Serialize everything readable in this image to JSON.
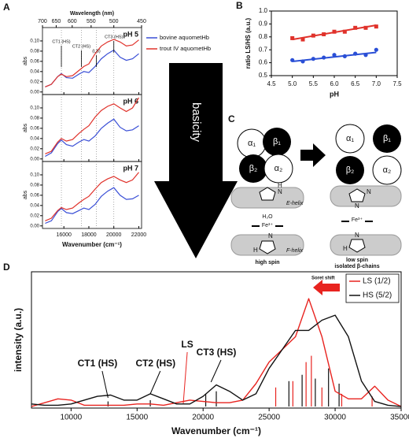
{
  "chart_data": [
    {
      "type": "line",
      "label": "A",
      "x2label": "Wavelength (nm)",
      "x2ticks": [
        700,
        650,
        600,
        550,
        500,
        450
      ],
      "xlabel": "Wavenumber (cm⁻¹)",
      "ylabel": "abs",
      "xlim": [
        14286,
        22222
      ],
      "xticks": [
        16000,
        18000,
        20000,
        22000
      ],
      "ylim": [
        -0.005,
        0.12
      ],
      "yticks": [
        {
          "value": 0,
          "label": "0.00"
        },
        {
          "value": 0.02,
          "label": "0.02"
        },
        {
          "value": 0.04,
          "label": "0.04"
        },
        {
          "value": 0.06,
          "label": "0.06"
        },
        {
          "value": 0.08,
          "label": "0.08"
        },
        {
          "value": 0.1,
          "label": "0.10"
        }
      ],
      "series": [
        {
          "name": "bovine aquometHb",
          "color": "#3a4fd6"
        },
        {
          "name": "trout IV aquometHb",
          "color": "#e0322b"
        }
      ],
      "annotations": [
        "CT1 (HS)",
        "CT2 (HS)",
        "(LS)",
        "CT3 (HS)"
      ],
      "arrow_label": "basicity",
      "x": [
        14500,
        15000,
        15500,
        15800,
        16200,
        16700,
        17200,
        17600,
        18000,
        18500,
        19000,
        19500,
        20000,
        20500,
        21000,
        21500,
        22000
      ],
      "panels": [
        {
          "title": "pH 5",
          "series": [
            {
              "values": [
                0.01,
                0.015,
                0.03,
                0.036,
                0.028,
                0.027,
                0.035,
                0.04,
                0.038,
                0.05,
                0.065,
                0.075,
                0.082,
                0.068,
                0.062,
                0.065,
                0.075
              ]
            },
            {
              "values": [
                0.01,
                0.015,
                0.03,
                0.035,
                0.03,
                0.032,
                0.042,
                0.05,
                0.055,
                0.075,
                0.09,
                0.098,
                0.103,
                0.098,
                0.09,
                0.092,
                0.102
              ]
            }
          ]
        },
        {
          "title": "pH 6",
          "series": [
            {
              "values": [
                0.005,
                0.012,
                0.03,
                0.037,
                0.028,
                0.025,
                0.033,
                0.038,
                0.035,
                0.045,
                0.06,
                0.07,
                0.078,
                0.062,
                0.055,
                0.057,
                0.065
              ]
            },
            {
              "values": [
                0.01,
                0.015,
                0.033,
                0.04,
                0.035,
                0.038,
                0.05,
                0.058,
                0.065,
                0.082,
                0.095,
                0.103,
                0.108,
                0.1,
                0.093,
                0.1,
                0.12
              ]
            }
          ]
        },
        {
          "title": "pH 7",
          "series": [
            {
              "values": [
                0.005,
                0.01,
                0.028,
                0.034,
                0.026,
                0.024,
                0.03,
                0.035,
                0.032,
                0.042,
                0.058,
                0.068,
                0.075,
                0.06,
                0.052,
                0.053,
                0.06
              ]
            },
            {
              "values": [
                0.01,
                0.015,
                0.03,
                0.036,
                0.032,
                0.035,
                0.045,
                0.052,
                0.058,
                0.072,
                0.085,
                0.092,
                0.097,
                0.09,
                0.085,
                0.09,
                0.105
              ]
            }
          ]
        }
      ]
    },
    {
      "type": "scatter",
      "label": "B",
      "xlabel": "pH",
      "ylabel": "ratio LS/HS (a.u.)",
      "xlim": [
        4.5,
        7.5
      ],
      "xticks": [
        4.5,
        {
          "value": 5,
          "label": "5.0"
        },
        5.5,
        {
          "value": 6,
          "label": "6.0"
        },
        6.5,
        {
          "value": 7,
          "label": "7.0"
        },
        7.5
      ],
      "ylim": [
        0.5,
        1
      ],
      "yticks": [
        0.5,
        0.6,
        0.7,
        0.8,
        0.9,
        {
          "value": 1,
          "label": "1.0"
        }
      ],
      "x": [
        5,
        5.25,
        5.5,
        5.75,
        6,
        6.25,
        6.5,
        6.75,
        7
      ],
      "series": [
        {
          "color": "#e0322b",
          "marker": "square",
          "values": [
            0.79,
            0.78,
            0.81,
            0.82,
            0.84,
            0.84,
            0.87,
            0.87,
            0.88
          ],
          "fit": [
            0.78,
            0.89
          ]
        },
        {
          "color": "#2a4fd6",
          "marker": "circle",
          "values": [
            0.62,
            0.61,
            0.63,
            0.64,
            0.66,
            0.65,
            0.67,
            0.66,
            0.7
          ],
          "fit": [
            0.61,
            0.68
          ]
        }
      ]
    },
    {
      "type": "line",
      "label": "D",
      "xlabel": "Wavenumber (cm⁻¹)",
      "ylabel": "intensity (a.u.)",
      "xlim": [
        7000,
        35000
      ],
      "xticks": [
        10000,
        15000,
        20000,
        25000,
        30000,
        35000
      ],
      "ylim": [
        0,
        1
      ],
      "legend": "upper right",
      "soret_label": "Soret shift",
      "annotations": [
        "CT1 (HS)",
        "CT2 (HS)",
        "LS",
        "CT3 (HS)"
      ],
      "x": [
        7000,
        8000,
        9000,
        10000,
        11000,
        12000,
        13000,
        14000,
        15000,
        16000,
        17000,
        18000,
        19000,
        20000,
        21000,
        22000,
        23000,
        24000,
        25000,
        26000,
        27000,
        28000,
        29000,
        30000,
        31000,
        32000,
        33000,
        34000,
        35000
      ],
      "series": [
        {
          "name": "LS (1/2)",
          "color": "#e8231f",
          "values": [
            0,
            0.03,
            0.06,
            0.05,
            0.01,
            0.01,
            0.01,
            0.01,
            0.02,
            0.02,
            0.01,
            0.03,
            0.05,
            0.04,
            0.03,
            0.03,
            0.05,
            0.18,
            0.35,
            0.45,
            0.55,
            0.85,
            0.55,
            0.12,
            0.06,
            0.06,
            0.16,
            0.05,
            0
          ],
          "sticks": {
            "x": [
              25500,
              26800,
              27800,
              28200,
              29000,
              30500,
              32800
            ],
            "values": [
              0.15,
              0.2,
              0.35,
              0.4,
              0.15,
              0.1,
              0.08
            ]
          }
        },
        {
          "name": "HS (5/2)",
          "color": "#111111",
          "values": [
            0.02,
            0.01,
            0.01,
            0.02,
            0.05,
            0.08,
            0.09,
            0.05,
            0.05,
            0.1,
            0.06,
            0.02,
            0.02,
            0.08,
            0.17,
            0.12,
            0.05,
            0.1,
            0.3,
            0.45,
            0.6,
            0.6,
            0.68,
            0.72,
            0.55,
            0.2,
            0.04,
            0.01,
            0
          ],
          "sticks": {
            "x": [
              12800,
              16000,
              20200,
              21000,
              26500,
              27500,
              28500,
              29500,
              30300
            ],
            "values": [
              0.04,
              0.05,
              0.1,
              0.12,
              0.2,
              0.25,
              0.22,
              0.3,
              0.18
            ]
          }
        }
      ]
    }
  ],
  "diagram": {
    "label": "C",
    "left_subunits": [
      "α₁",
      "β₁",
      "β₂",
      "α₂"
    ],
    "right_subunits": [
      "α₁",
      "β₁",
      "β₂",
      "α₂"
    ],
    "ring_atoms": [
      "N",
      "H"
    ],
    "helices": [
      "E-helix",
      "F-helix"
    ],
    "water": "H₂O",
    "iron": "Fe³⁺",
    "states": [
      "high spin",
      "low spin",
      "isolated β-chains"
    ]
  }
}
